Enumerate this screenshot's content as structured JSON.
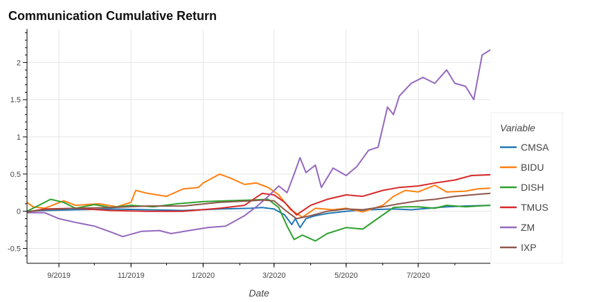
{
  "chart_data": {
    "type": "line",
    "title": "Communication Cumulative Return",
    "xlabel": "Date",
    "ylabel": "",
    "legend_title": "Variable",
    "legend_position": "right",
    "grid": true,
    "x_range": [
      "2019-08-05",
      "2020-08-31"
    ],
    "ylim": [
      -0.7,
      2.45
    ],
    "x_ticks": [
      {
        "date": "2019-09-01",
        "label": "9/2019"
      },
      {
        "date": "2019-11-01",
        "label": "11/2019"
      },
      {
        "date": "2020-01-01",
        "label": "1/2020"
      },
      {
        "date": "2020-03-01",
        "label": "3/2020"
      },
      {
        "date": "2020-05-01",
        "label": "5/2020"
      },
      {
        "date": "2020-07-01",
        "label": "7/2020"
      }
    ],
    "y_ticks": [
      {
        "value": -0.5,
        "label": "-0.5"
      },
      {
        "value": 0,
        "label": "0"
      },
      {
        "value": 0.5,
        "label": "0.5"
      },
      {
        "value": 1,
        "label": "1"
      },
      {
        "value": 1.5,
        "label": "1.5"
      },
      {
        "value": 2,
        "label": "2"
      }
    ],
    "series": [
      {
        "name": "CMSA",
        "color": "#1f77b4",
        "points": [
          [
            "2019-08-05",
            0.0
          ],
          [
            "2019-08-20",
            0.01
          ],
          [
            "2019-09-15",
            0.02
          ],
          [
            "2019-10-15",
            0.03
          ],
          [
            "2019-11-15",
            0.02
          ],
          [
            "2019-12-15",
            0.01
          ],
          [
            "2020-01-15",
            0.03
          ],
          [
            "2020-02-10",
            0.04
          ],
          [
            "2020-02-20",
            0.05
          ],
          [
            "2020-03-01",
            0.03
          ],
          [
            "2020-03-10",
            -0.05
          ],
          [
            "2020-03-16",
            -0.18
          ],
          [
            "2020-03-19",
            -0.1
          ],
          [
            "2020-03-23",
            -0.22
          ],
          [
            "2020-03-28",
            -0.1
          ],
          [
            "2020-04-05",
            -0.06
          ],
          [
            "2020-04-15",
            -0.03
          ],
          [
            "2020-05-01",
            0.0
          ],
          [
            "2020-05-20",
            0.02
          ],
          [
            "2020-06-10",
            0.03
          ],
          [
            "2020-06-25",
            0.02
          ],
          [
            "2020-07-10",
            0.04
          ],
          [
            "2020-07-25",
            0.06
          ],
          [
            "2020-08-10",
            0.07
          ],
          [
            "2020-08-31",
            0.08
          ]
        ]
      },
      {
        "name": "BIDU",
        "color": "#ff7f0e",
        "points": [
          [
            "2019-08-05",
            0.12
          ],
          [
            "2019-08-10",
            0.06
          ],
          [
            "2019-08-20",
            0.04
          ],
          [
            "2019-09-05",
            0.14
          ],
          [
            "2019-09-15",
            0.08
          ],
          [
            "2019-10-05",
            0.1
          ],
          [
            "2019-10-20",
            0.06
          ],
          [
            "2019-11-01",
            0.12
          ],
          [
            "2019-11-05",
            0.28
          ],
          [
            "2019-11-15",
            0.24
          ],
          [
            "2019-12-01",
            0.2
          ],
          [
            "2019-12-15",
            0.3
          ],
          [
            "2019-12-28",
            0.32
          ],
          [
            "2020-01-01",
            0.38
          ],
          [
            "2020-01-15",
            0.5
          ],
          [
            "2020-01-25",
            0.44
          ],
          [
            "2020-02-05",
            0.36
          ],
          [
            "2020-02-15",
            0.38
          ],
          [
            "2020-02-25",
            0.32
          ],
          [
            "2020-03-05",
            0.22
          ],
          [
            "2020-03-15",
            0.02
          ],
          [
            "2020-03-25",
            -0.08
          ],
          [
            "2020-04-05",
            0.04
          ],
          [
            "2020-04-20",
            0.02
          ],
          [
            "2020-05-01",
            0.04
          ],
          [
            "2020-05-15",
            -0.01
          ],
          [
            "2020-06-01",
            0.08
          ],
          [
            "2020-06-10",
            0.2
          ],
          [
            "2020-06-20",
            0.28
          ],
          [
            "2020-07-01",
            0.26
          ],
          [
            "2020-07-15",
            0.35
          ],
          [
            "2020-07-25",
            0.26
          ],
          [
            "2020-08-10",
            0.27
          ],
          [
            "2020-08-20",
            0.3
          ],
          [
            "2020-08-31",
            0.31
          ]
        ]
      },
      {
        "name": "DISH",
        "color": "#2ca02c",
        "points": [
          [
            "2019-08-05",
            0.0
          ],
          [
            "2019-08-15",
            0.08
          ],
          [
            "2019-08-25",
            0.16
          ],
          [
            "2019-09-05",
            0.12
          ],
          [
            "2019-09-15",
            0.04
          ],
          [
            "2019-10-01",
            0.09
          ],
          [
            "2019-10-15",
            0.05
          ],
          [
            "2019-11-01",
            0.08
          ],
          [
            "2019-11-20",
            0.06
          ],
          [
            "2019-12-10",
            0.1
          ],
          [
            "2020-01-01",
            0.13
          ],
          [
            "2020-01-20",
            0.14
          ],
          [
            "2020-02-10",
            0.15
          ],
          [
            "2020-02-25",
            0.16
          ],
          [
            "2020-03-05",
            0.05
          ],
          [
            "2020-03-12",
            -0.2
          ],
          [
            "2020-03-18",
            -0.38
          ],
          [
            "2020-03-25",
            -0.32
          ],
          [
            "2020-04-05",
            -0.4
          ],
          [
            "2020-04-15",
            -0.3
          ],
          [
            "2020-05-01",
            -0.22
          ],
          [
            "2020-05-15",
            -0.24
          ],
          [
            "2020-06-01",
            -0.05
          ],
          [
            "2020-06-10",
            0.05
          ],
          [
            "2020-06-20",
            0.06
          ],
          [
            "2020-07-01",
            0.06
          ],
          [
            "2020-07-15",
            0.04
          ],
          [
            "2020-07-25",
            0.08
          ],
          [
            "2020-08-10",
            0.06
          ],
          [
            "2020-08-20",
            0.07
          ],
          [
            "2020-08-31",
            0.08
          ]
        ]
      },
      {
        "name": "TMUS",
        "color": "#d62728",
        "points": [
          [
            "2019-08-05",
            -0.01
          ],
          [
            "2019-08-20",
            0.03
          ],
          [
            "2019-09-15",
            0.04
          ],
          [
            "2019-10-15",
            0.01
          ],
          [
            "2019-11-15",
            0.0
          ],
          [
            "2019-12-15",
            0.0
          ],
          [
            "2020-01-15",
            0.04
          ],
          [
            "2020-02-05",
            0.08
          ],
          [
            "2020-02-20",
            0.24
          ],
          [
            "2020-03-01",
            0.22
          ],
          [
            "2020-03-10",
            0.12
          ],
          [
            "2020-03-20",
            -0.05
          ],
          [
            "2020-04-01",
            0.08
          ],
          [
            "2020-04-15",
            0.16
          ],
          [
            "2020-05-01",
            0.22
          ],
          [
            "2020-05-15",
            0.2
          ],
          [
            "2020-06-01",
            0.28
          ],
          [
            "2020-06-15",
            0.32
          ],
          [
            "2020-07-01",
            0.34
          ],
          [
            "2020-07-15",
            0.38
          ],
          [
            "2020-08-01",
            0.42
          ],
          [
            "2020-08-15",
            0.48
          ],
          [
            "2020-08-31",
            0.49
          ]
        ]
      },
      {
        "name": "ZM",
        "color": "#9467bd",
        "points": [
          [
            "2019-08-05",
            -0.02
          ],
          [
            "2019-08-20",
            -0.02
          ],
          [
            "2019-09-01",
            -0.1
          ],
          [
            "2019-09-15",
            -0.15
          ],
          [
            "2019-10-01",
            -0.2
          ],
          [
            "2019-10-15",
            -0.28
          ],
          [
            "2019-10-25",
            -0.34
          ],
          [
            "2019-11-10",
            -0.27
          ],
          [
            "2019-11-25",
            -0.26
          ],
          [
            "2019-12-05",
            -0.3
          ],
          [
            "2019-12-20",
            -0.26
          ],
          [
            "2020-01-05",
            -0.22
          ],
          [
            "2020-01-20",
            -0.2
          ],
          [
            "2020-02-05",
            -0.06
          ],
          [
            "2020-02-15",
            0.06
          ],
          [
            "2020-02-25",
            0.2
          ],
          [
            "2020-03-05",
            0.34
          ],
          [
            "2020-03-12",
            0.25
          ],
          [
            "2020-03-18",
            0.5
          ],
          [
            "2020-03-23",
            0.72
          ],
          [
            "2020-03-28",
            0.52
          ],
          [
            "2020-04-05",
            0.62
          ],
          [
            "2020-04-10",
            0.32
          ],
          [
            "2020-04-20",
            0.58
          ],
          [
            "2020-05-01",
            0.48
          ],
          [
            "2020-05-10",
            0.6
          ],
          [
            "2020-05-20",
            0.82
          ],
          [
            "2020-05-28",
            0.86
          ],
          [
            "2020-06-05",
            1.4
          ],
          [
            "2020-06-10",
            1.3
          ],
          [
            "2020-06-15",
            1.55
          ],
          [
            "2020-06-25",
            1.72
          ],
          [
            "2020-07-05",
            1.8
          ],
          [
            "2020-07-15",
            1.72
          ],
          [
            "2020-07-25",
            1.9
          ],
          [
            "2020-08-01",
            1.72
          ],
          [
            "2020-08-10",
            1.68
          ],
          [
            "2020-08-17",
            1.5
          ],
          [
            "2020-08-24",
            2.1
          ],
          [
            "2020-08-31",
            2.17
          ]
        ]
      },
      {
        "name": "IXP",
        "color": "#8c564b",
        "points": [
          [
            "2019-08-05",
            -0.01
          ],
          [
            "2019-08-20",
            0.02
          ],
          [
            "2019-09-15",
            0.04
          ],
          [
            "2019-10-15",
            0.05
          ],
          [
            "2019-11-15",
            0.07
          ],
          [
            "2019-12-15",
            0.07
          ],
          [
            "2020-01-15",
            0.12
          ],
          [
            "2020-02-10",
            0.14
          ],
          [
            "2020-02-20",
            0.15
          ],
          [
            "2020-03-01",
            0.14
          ],
          [
            "2020-03-10",
            0.02
          ],
          [
            "2020-03-20",
            -0.1
          ],
          [
            "2020-04-01",
            -0.06
          ],
          [
            "2020-04-15",
            0.0
          ],
          [
            "2020-05-01",
            0.03
          ],
          [
            "2020-05-15",
            0.02
          ],
          [
            "2020-06-01",
            0.06
          ],
          [
            "2020-06-15",
            0.1
          ],
          [
            "2020-07-01",
            0.14
          ],
          [
            "2020-07-15",
            0.16
          ],
          [
            "2020-08-01",
            0.2
          ],
          [
            "2020-08-15",
            0.22
          ],
          [
            "2020-08-31",
            0.24
          ]
        ]
      }
    ]
  }
}
